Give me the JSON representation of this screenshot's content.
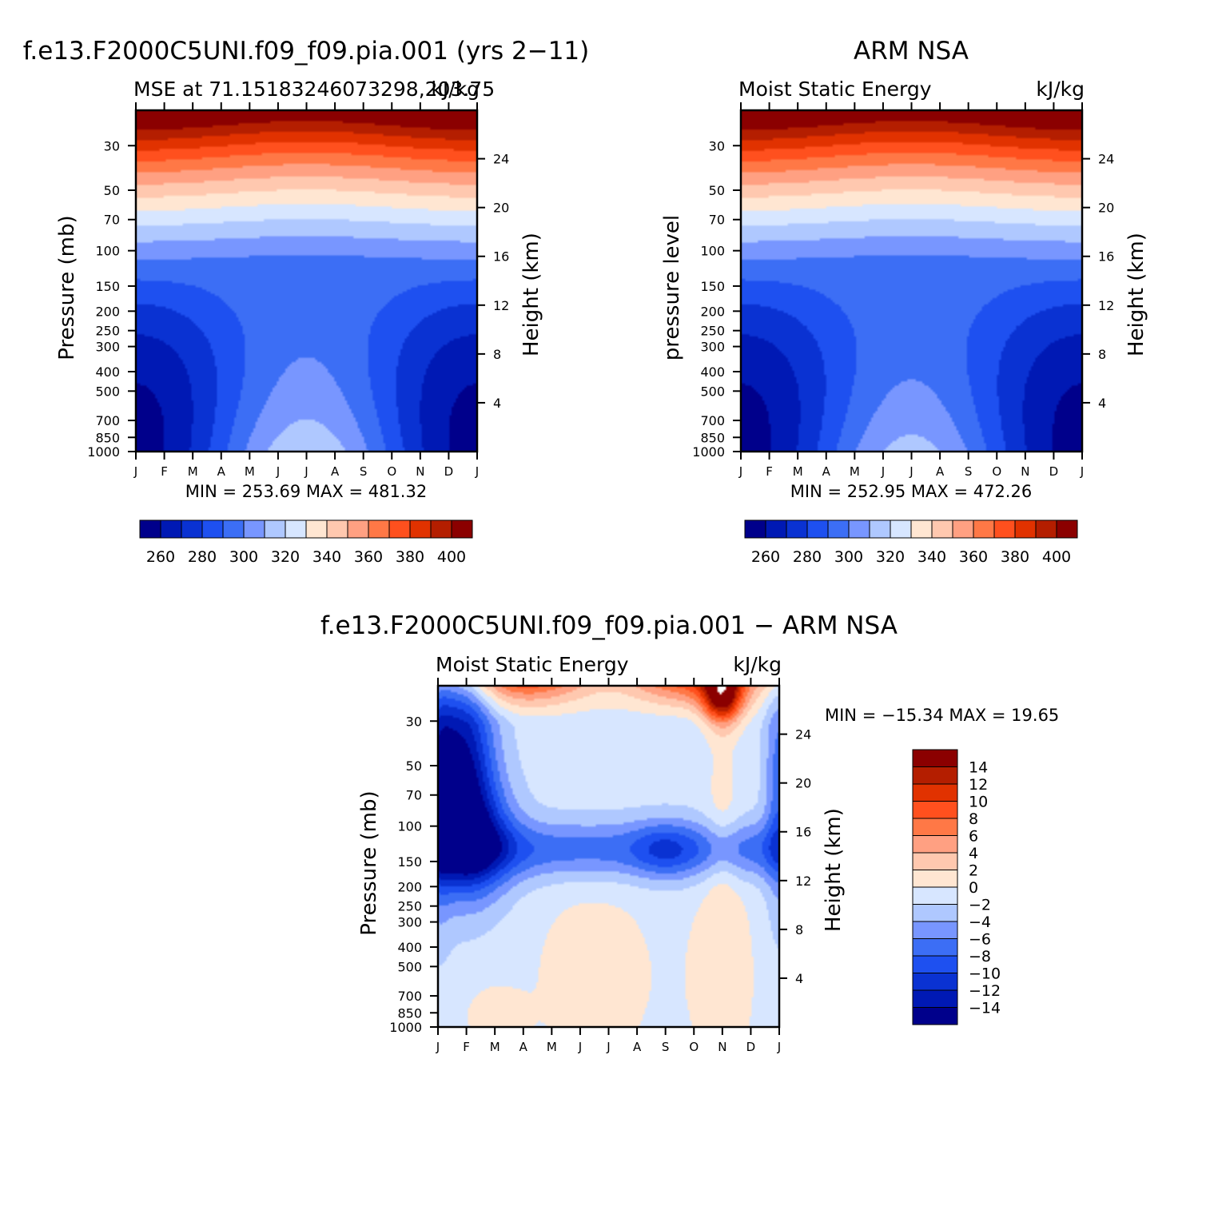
{
  "chart_data": [
    {
      "type": "heatmap",
      "title": "f.e13.F2000C5UNI.f09_f09.pia.001 (yrs 2−11)",
      "subtitle_left": "MSE at 71.15183246073298,203.75",
      "subtitle_right": "kJ/kg",
      "ylabel": "Pressure (mb)",
      "ylabel_right": "Height (km)",
      "minmax_text": "MIN = 253.69 MAX = 481.32",
      "min": 253.69,
      "max": 481.32,
      "x": [
        "J",
        "F",
        "M",
        "A",
        "M",
        "J",
        "J",
        "A",
        "S",
        "O",
        "N",
        "D",
        "J"
      ],
      "y_ticks": [
        30,
        50,
        70,
        100,
        150,
        200,
        250,
        300,
        400,
        500,
        700,
        850,
        1000
      ],
      "height_ticks": [
        24,
        20,
        16,
        12,
        8,
        4
      ],
      "colorbar": {
        "levels": [
          260,
          270,
          280,
          290,
          300,
          310,
          320,
          330,
          340,
          350,
          360,
          370,
          380,
          390,
          400
        ],
        "tick_labels": [
          260,
          280,
          300,
          320,
          340,
          360,
          380,
          400
        ]
      }
    },
    {
      "type": "heatmap",
      "title": "ARM NSA",
      "subtitle_left": "Moist Static Energy",
      "subtitle_right": "kJ/kg",
      "ylabel": "pressure level",
      "ylabel_right": "Height (km)",
      "minmax_text": "MIN = 252.95 MAX = 472.26",
      "min": 252.95,
      "max": 472.26,
      "x": [
        "J",
        "F",
        "M",
        "A",
        "M",
        "J",
        "J",
        "A",
        "S",
        "O",
        "N",
        "D",
        "J"
      ],
      "y_ticks": [
        30,
        50,
        70,
        100,
        150,
        200,
        250,
        300,
        400,
        500,
        700,
        850,
        1000
      ],
      "height_ticks": [
        24,
        20,
        16,
        12,
        8,
        4
      ],
      "colorbar": {
        "levels": [
          260,
          270,
          280,
          290,
          300,
          310,
          320,
          330,
          340,
          350,
          360,
          370,
          380,
          390,
          400
        ],
        "tick_labels": [
          260,
          280,
          300,
          320,
          340,
          360,
          380,
          400
        ]
      }
    },
    {
      "type": "heatmap",
      "title": "f.e13.F2000C5UNI.f09_f09.pia.001 − ARM NSA",
      "subtitle_left": "Moist Static Energy",
      "subtitle_right": "kJ/kg",
      "ylabel": "Pressure (mb)",
      "ylabel_right": "Height (km)",
      "minmax_text": "MIN = −15.34 MAX =   19.65",
      "min": -15.34,
      "max": 19.65,
      "x": [
        "J",
        "F",
        "M",
        "A",
        "M",
        "J",
        "J",
        "A",
        "S",
        "O",
        "N",
        "D",
        "J"
      ],
      "y_ticks": [
        30,
        50,
        70,
        100,
        150,
        200,
        250,
        300,
        400,
        500,
        700,
        850,
        1000
      ],
      "height_ticks": [
        24,
        20,
        16,
        12,
        8,
        4
      ],
      "colorbar": {
        "levels": [
          -14,
          -12,
          -10,
          -8,
          -6,
          -4,
          -2,
          0,
          2,
          4,
          6,
          8,
          10,
          12,
          14
        ],
        "tick_labels": [
          "14",
          "12",
          "10",
          "8",
          "6",
          "4",
          "2",
          "0",
          "−2",
          "−4",
          "−6",
          "−8",
          "−10",
          "−12",
          "−14"
        ]
      }
    }
  ],
  "palette": [
    "#00008b",
    "#0019b4",
    "#0a32d2",
    "#1e50f0",
    "#3c6ef5",
    "#7896ff",
    "#afc8ff",
    "#d7e6ff",
    "#ffe6d2",
    "#ffc8af",
    "#ffa082",
    "#ff7846",
    "#ff501e",
    "#e13200",
    "#b41e00",
    "#8b0000"
  ]
}
